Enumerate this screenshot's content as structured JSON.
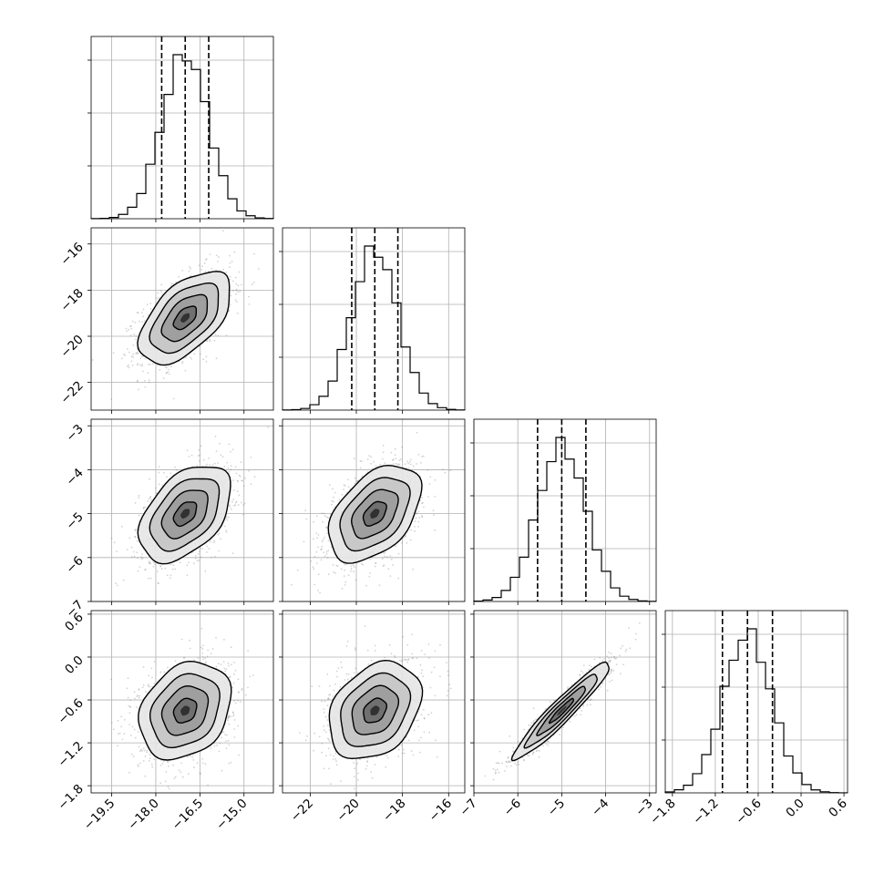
{
  "chart_data": {
    "type": "corner",
    "title": "",
    "parameters": [
      {
        "name": "",
        "mean": -17.0,
        "sd": 0.78,
        "range": [
          -20.2,
          -14.0
        ],
        "ticks": [
          -19.5,
          -18.0,
          -16.5,
          -15.0
        ],
        "tick_labels": [
          "−19.5",
          "−18.0",
          "−16.5",
          "−15.0"
        ],
        "quantiles": [
          -17.8,
          -17.0,
          -16.2
        ]
      },
      {
        "name": "",
        "mean": -19.2,
        "sd": 1.0,
        "range": [
          -23.2,
          -15.3
        ],
        "ticks": [
          -22,
          -20,
          -18,
          -16
        ],
        "tick_labels": [
          "−22",
          "−20",
          "−18",
          "−16"
        ],
        "quantiles": [
          -20.2,
          -19.2,
          -18.2
        ]
      },
      {
        "name": "",
        "mean": -5.0,
        "sd": 0.55,
        "range": [
          -7.0,
          -2.85
        ],
        "ticks": [
          -7,
          -6,
          -5,
          -4,
          -3
        ],
        "tick_labels": [
          "−7",
          "−6",
          "−5",
          "−4",
          "−3"
        ],
        "quantiles": [
          -5.55,
          -5.0,
          -4.45
        ]
      },
      {
        "name": "",
        "mean": -0.75,
        "sd": 0.34,
        "range": [
          -1.9,
          0.65
        ],
        "ticks": [
          -1.8,
          -1.2,
          -0.6,
          0.0,
          0.6
        ],
        "tick_labels": [
          "−1.8",
          "−1.2",
          "−0.6",
          "0.0",
          "0.6"
        ],
        "quantiles": [
          -1.1,
          -0.75,
          -0.4
        ]
      }
    ],
    "correlations": [
      {
        "pair": [
          0,
          1
        ],
        "rho": 0.55
      },
      {
        "pair": [
          0,
          2
        ],
        "rho": 0.45
      },
      {
        "pair": [
          1,
          2
        ],
        "rho": 0.45
      },
      {
        "pair": [
          0,
          3
        ],
        "rho": 0.25
      },
      {
        "pair": [
          1,
          3
        ],
        "rho": 0.3
      },
      {
        "pair": [
          2,
          3
        ],
        "rho": 0.95
      }
    ],
    "histogram_bins": 20,
    "contour_levels_sigma": [
      0.5,
      1.0,
      1.5,
      2.0
    ],
    "grid": true,
    "colors": {
      "points": "#808080",
      "density": "#000000",
      "lines": "#000000"
    }
  }
}
